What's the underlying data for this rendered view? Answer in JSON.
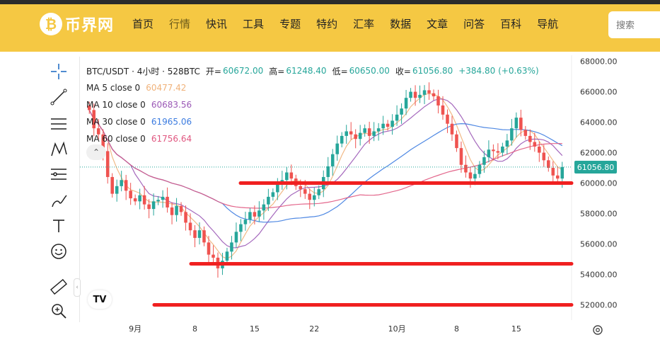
{
  "nav": {
    "logo_text": "币界网",
    "items": [
      "首页",
      "行情",
      "快讯",
      "工具",
      "专题",
      "特约",
      "汇率",
      "数据",
      "文章",
      "问答",
      "百科",
      "导航"
    ],
    "active_index": 1,
    "search_placeholder": "搜索",
    "bg_color": "#f5c843"
  },
  "legend": {
    "symbol": "BTC/USDT · 4小时 · 528BTC",
    "open_label": "开=",
    "open": "60672.00",
    "high_label": "高=",
    "high": "61248.40",
    "low_label": "低=",
    "low": "60650.00",
    "close_label": "收=",
    "close": "61056.80",
    "change": "+384.80 (+0.63%)",
    "ma": [
      {
        "label": "MA 5 close 0",
        "value": "60477.42",
        "color": "#f0b27a"
      },
      {
        "label": "MA 10 close 0",
        "value": "60683.56",
        "color": "#9b59b6"
      },
      {
        "label": "MA 30 close 0",
        "value": "61965.06",
        "color": "#3b7be0"
      },
      {
        "label": "MA 60 close 0",
        "value": "61756.64",
        "color": "#e05780"
      }
    ]
  },
  "price_tag": "61056.80",
  "chart_data": {
    "type": "candlestick",
    "x_tick_labels": [
      "9月",
      "8",
      "15",
      "22",
      "10月",
      "8",
      "15"
    ],
    "y_tick_labels": [
      "68000.00",
      "66000.00",
      "64000.00",
      "62000.00",
      "60000.00",
      "58000.00",
      "56000.00",
      "54000.00",
      "52000.00"
    ],
    "ylim": [
      51000,
      68400
    ],
    "last_price": 61056.8,
    "closes": [
      64800,
      63600,
      63200,
      62100,
      60400,
      59300,
      59800,
      60200,
      59500,
      59000,
      58800,
      59200,
      58600,
      58300,
      58800,
      58900,
      59100,
      58400,
      57900,
      58500,
      58100,
      57400,
      56900,
      56400,
      56900,
      56100,
      55300,
      55100,
      54400,
      54900,
      55500,
      56100,
      56800,
      57300,
      57600,
      58100,
      57800,
      58200,
      58600,
      59100,
      59400,
      59900,
      60200,
      60700,
      60300,
      59800,
      59600,
      59300,
      58900,
      59200,
      59600,
      60400,
      61100,
      61900,
      62600,
      63100,
      63400,
      63200,
      62900,
      63300,
      63600,
      63100,
      63400,
      63600,
      63900,
      63700,
      64100,
      64500,
      64900,
      65600,
      66000,
      65600,
      65800,
      66100,
      65900,
      65700,
      65100,
      64500,
      63900,
      63200,
      62300,
      61200,
      60700,
      60300,
      60600,
      61200,
      61700,
      62200,
      62100,
      62000,
      62400,
      62800,
      63600,
      64300,
      63500,
      63100,
      62700,
      62400,
      62000,
      61500,
      61000,
      60500,
      60300,
      61056.8
    ],
    "series": [
      {
        "name": "MA 5",
        "color": "#f0b27a"
      },
      {
        "name": "MA 10",
        "color": "#9b59b6"
      },
      {
        "name": "MA 30",
        "color": "#3b7be0"
      },
      {
        "name": "MA 60",
        "color": "#e05780"
      }
    ],
    "horizontal_lines": [
      60000,
      54700,
      52000
    ],
    "horizontal_line_color": "#f02020",
    "up_color": "#26a69a",
    "down_color": "#ef5350"
  }
}
